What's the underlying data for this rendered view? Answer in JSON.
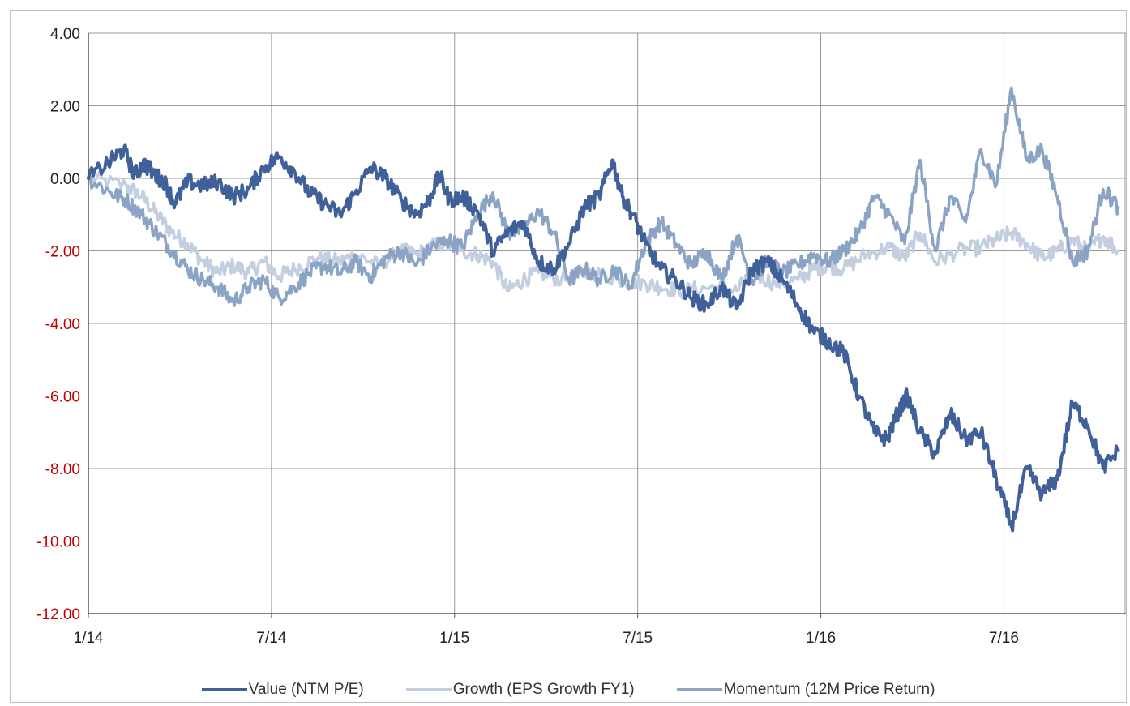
{
  "chart_data": {
    "type": "line",
    "title": "",
    "xlabel": "",
    "ylabel": "",
    "x_ticks": [
      "1/14",
      "7/14",
      "1/15",
      "7/15",
      "1/16",
      "7/16"
    ],
    "x_range": [
      "1/14",
      "10/16"
    ],
    "y_ticks": [
      "4.00",
      "2.00",
      "0.00",
      "-2.00",
      "-4.00",
      "-6.00",
      "-8.00",
      "-10.00",
      "-12.00"
    ],
    "ylim": [
      -12,
      4
    ],
    "grid": true,
    "legend_position": "bottom",
    "negative_tick_color": "#c00000",
    "positive_tick_color": "#222222",
    "series": [
      {
        "name": "Value (NTM P/E)",
        "color": "#40609a",
        "points": [
          [
            "1/14",
            0.0
          ],
          [
            "1/14",
            0.5
          ],
          [
            "2/14",
            0.8
          ],
          [
            "2/14",
            0.1
          ],
          [
            "2/14",
            0.4
          ],
          [
            "3/14",
            0.1
          ],
          [
            "3/14",
            -0.1
          ],
          [
            "3/14",
            -0.7
          ],
          [
            "4/14",
            -0.1
          ],
          [
            "4/14",
            -0.2
          ],
          [
            "5/14",
            -0.1
          ],
          [
            "5/14",
            -0.5
          ],
          [
            "6/14",
            -0.3
          ],
          [
            "6/14",
            0.3
          ],
          [
            "7/14",
            0.6
          ],
          [
            "7/14",
            0.2
          ],
          [
            "8/14",
            -0.4
          ],
          [
            "8/14",
            -0.7
          ],
          [
            "9/14",
            -1.0
          ],
          [
            "9/14",
            -0.4
          ],
          [
            "10/14",
            0.3
          ],
          [
            "10/14",
            0.0
          ],
          [
            "11/14",
            -0.6
          ],
          [
            "11/14",
            -1.0
          ],
          [
            "12/14",
            -0.6
          ],
          [
            "12/14",
            0.1
          ],
          [
            "12/14",
            -0.6
          ],
          [
            "1/15",
            -0.5
          ],
          [
            "1/15",
            -0.9
          ],
          [
            "2/15",
            -2.0
          ],
          [
            "2/15",
            -1.5
          ],
          [
            "3/15",
            -1.2
          ],
          [
            "3/15",
            -2.3
          ],
          [
            "4/15",
            -2.5
          ],
          [
            "4/15",
            -1.8
          ],
          [
            "5/15",
            -0.8
          ],
          [
            "5/15",
            -0.5
          ],
          [
            "6/15",
            0.5
          ],
          [
            "6/15",
            -0.5
          ],
          [
            "6/15",
            -1.0
          ],
          [
            "7/15",
            -1.8
          ],
          [
            "7/15",
            -2.5
          ],
          [
            "8/15",
            -2.8
          ],
          [
            "8/15",
            -3.3
          ],
          [
            "9/15",
            -3.5
          ],
          [
            "9/15",
            -3.0
          ],
          [
            "10/15",
            -3.6
          ],
          [
            "10/15",
            -2.5
          ],
          [
            "11/15",
            -2.3
          ],
          [
            "11/15",
            -2.8
          ],
          [
            "12/15",
            -3.5
          ],
          [
            "12/15",
            -4.2
          ],
          [
            "1/16",
            -4.5
          ],
          [
            "1/16",
            -4.8
          ],
          [
            "2/16",
            -6.0
          ],
          [
            "2/16",
            -7.0
          ],
          [
            "3/16",
            -7.2
          ],
          [
            "3/16",
            -6.5
          ],
          [
            "3/16",
            -6.0
          ],
          [
            "4/16",
            -7.0
          ],
          [
            "4/16",
            -7.6
          ],
          [
            "5/16",
            -6.5
          ],
          [
            "5/16",
            -7.2
          ],
          [
            "6/16",
            -7.0
          ],
          [
            "6/16",
            -8.3
          ],
          [
            "7/16",
            -9.6
          ],
          [
            "7/16",
            -8.0
          ],
          [
            "8/16",
            -8.7
          ],
          [
            "8/16",
            -8.3
          ],
          [
            "9/16",
            -6.2
          ],
          [
            "9/16",
            -6.8
          ],
          [
            "10/16",
            -8.0
          ],
          [
            "10/16",
            -7.5
          ]
        ]
      },
      {
        "name": "Growth (EPS Growth FY1)",
        "color": "#c3cfe0",
        "points": [
          [
            "1/14",
            0.0
          ],
          [
            "2/14",
            -0.2
          ],
          [
            "2/14",
            -0.5
          ],
          [
            "3/14",
            -1.0
          ],
          [
            "3/14",
            -1.5
          ],
          [
            "4/14",
            -1.8
          ],
          [
            "4/14",
            -2.3
          ],
          [
            "5/14",
            -2.6
          ],
          [
            "5/14",
            -2.4
          ],
          [
            "6/14",
            -2.6
          ],
          [
            "6/14",
            -2.3
          ],
          [
            "7/14",
            -2.7
          ],
          [
            "7/14",
            -2.5
          ],
          [
            "8/14",
            -2.2
          ],
          [
            "9/14",
            -2.3
          ],
          [
            "9/14",
            -2.1
          ],
          [
            "10/14",
            -2.4
          ],
          [
            "11/14",
            -2.0
          ],
          [
            "11/14",
            -2.1
          ],
          [
            "12/14",
            -1.8
          ],
          [
            "1/15",
            -2.0
          ],
          [
            "1/15",
            -2.1
          ],
          [
            "2/15",
            -2.3
          ],
          [
            "2/15",
            -3.1
          ],
          [
            "3/15",
            -2.8
          ],
          [
            "3/15",
            -2.6
          ],
          [
            "4/15",
            -2.8
          ],
          [
            "5/15",
            -2.6
          ],
          [
            "6/15",
            -2.8
          ],
          [
            "7/15",
            -2.9
          ],
          [
            "7/15",
            -3.0
          ],
          [
            "8/15",
            -3.1
          ],
          [
            "9/15",
            -3.0
          ],
          [
            "10/15",
            -3.1
          ],
          [
            "10/15",
            -2.6
          ],
          [
            "11/15",
            -2.9
          ],
          [
            "12/15",
            -2.8
          ],
          [
            "12/15",
            -2.5
          ],
          [
            "1/16",
            -2.4
          ],
          [
            "1/16",
            -2.5
          ],
          [
            "2/16",
            -2.1
          ],
          [
            "3/16",
            -1.9
          ],
          [
            "3/16",
            -2.2
          ],
          [
            "4/16",
            -1.5
          ],
          [
            "4/16",
            -2.3
          ],
          [
            "5/16",
            -2.0
          ],
          [
            "6/16",
            -1.9
          ],
          [
            "6/16",
            -1.7
          ],
          [
            "7/16",
            -1.5
          ],
          [
            "7/16",
            -1.8
          ],
          [
            "8/16",
            -2.2
          ],
          [
            "8/16",
            -2.0
          ],
          [
            "9/16",
            -1.7
          ],
          [
            "9/16",
            -2.0
          ],
          [
            "10/16",
            -1.6
          ],
          [
            "10/16",
            -2.0
          ]
        ]
      },
      {
        "name": "Momentum (12M Price Return)",
        "color": "#8ba4c6",
        "points": [
          [
            "1/14",
            0.0
          ],
          [
            "1/14",
            -0.4
          ],
          [
            "2/14",
            -0.6
          ],
          [
            "2/14",
            -1.0
          ],
          [
            "3/14",
            -1.5
          ],
          [
            "3/14",
            -2.0
          ],
          [
            "4/14",
            -2.5
          ],
          [
            "4/14",
            -2.8
          ],
          [
            "5/14",
            -3.0
          ],
          [
            "5/14",
            -3.4
          ],
          [
            "6/14",
            -3.0
          ],
          [
            "6/14",
            -2.8
          ],
          [
            "7/14",
            -3.3
          ],
          [
            "7/14",
            -3.0
          ],
          [
            "8/14",
            -2.6
          ],
          [
            "8/14",
            -2.4
          ],
          [
            "9/14",
            -2.6
          ],
          [
            "9/14",
            -2.3
          ],
          [
            "10/14",
            -2.7
          ],
          [
            "10/14",
            -2.2
          ],
          [
            "11/14",
            -2.0
          ],
          [
            "11/14",
            -2.4
          ],
          [
            "12/14",
            -1.9
          ],
          [
            "12/14",
            -1.7
          ],
          [
            "1/15",
            -1.9
          ],
          [
            "1/15",
            -1.0
          ],
          [
            "2/15",
            -0.4
          ],
          [
            "2/15",
            -1.5
          ],
          [
            "3/15",
            -1.4
          ],
          [
            "3/15",
            -0.9
          ],
          [
            "4/15",
            -1.5
          ],
          [
            "4/15",
            -2.8
          ],
          [
            "5/15",
            -2.5
          ],
          [
            "5/15",
            -2.8
          ],
          [
            "6/15",
            -2.5
          ],
          [
            "6/15",
            -3.0
          ],
          [
            "7/15",
            -1.8
          ],
          [
            "7/15",
            -1.2
          ],
          [
            "8/15",
            -1.8
          ],
          [
            "8/15",
            -2.4
          ],
          [
            "9/15",
            -2.0
          ],
          [
            "9/15",
            -2.8
          ],
          [
            "10/15",
            -1.6
          ],
          [
            "10/15",
            -2.8
          ],
          [
            "11/15",
            -2.3
          ],
          [
            "11/15",
            -2.6
          ],
          [
            "12/15",
            -2.4
          ],
          [
            "12/15",
            -2.1
          ],
          [
            "1/16",
            -2.3
          ],
          [
            "1/16",
            -2.0
          ],
          [
            "2/16",
            -1.5
          ],
          [
            "2/16",
            -0.5
          ],
          [
            "3/16",
            -1.0
          ],
          [
            "3/16",
            -1.8
          ],
          [
            "4/16",
            0.5
          ],
          [
            "4/16",
            -2.0
          ],
          [
            "5/16",
            -0.5
          ],
          [
            "5/16",
            -1.2
          ],
          [
            "6/16",
            0.8
          ],
          [
            "6/16",
            -0.2
          ],
          [
            "7/16",
            2.5
          ],
          [
            "7/16",
            0.5
          ],
          [
            "8/16",
            0.8
          ],
          [
            "8/16",
            -0.5
          ],
          [
            "9/16",
            -2.3
          ],
          [
            "9/16",
            -2.0
          ],
          [
            "10/16",
            -0.3
          ],
          [
            "10/16",
            -0.8
          ]
        ]
      }
    ]
  }
}
